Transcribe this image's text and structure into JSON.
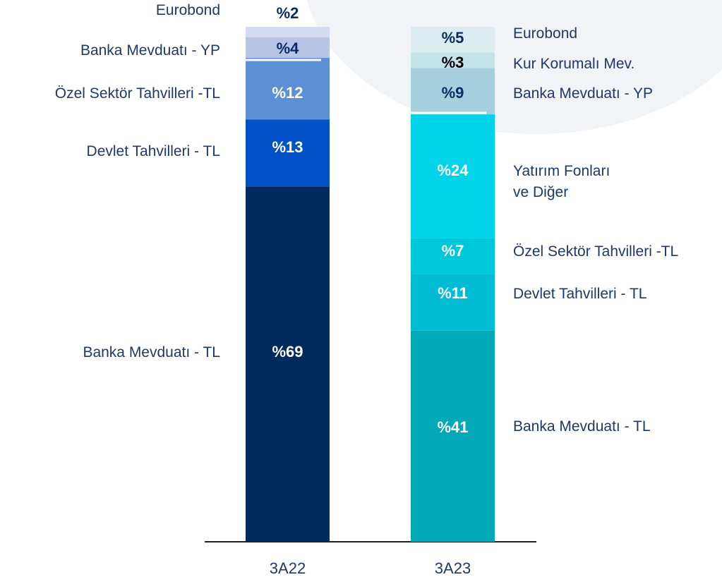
{
  "chart_data": {
    "type": "stacked-bar",
    "categories": [
      "3A22",
      "3A23"
    ],
    "stacks": [
      {
        "names": [
          "Banka Mevduatı - TL",
          "Devlet Tahvilleri - TL",
          "Özel Sektör Tahvilleri -TL",
          "Banka Mevduatı - YP",
          "Eurobond"
        ],
        "values": [
          69,
          13,
          12,
          4,
          2
        ],
        "value_labels": [
          "%69",
          "%13",
          "%12",
          "%4",
          "%2"
        ],
        "colors": [
          "#002a5c",
          "#0050c8",
          "#5b8fd6",
          "#b8c4e6",
          "#d4daf0"
        ],
        "label_colors": [
          "#ffffff",
          "#ffffff",
          "#ffffff",
          "#0b2b63",
          "#0b2b63"
        ]
      },
      {
        "names": [
          "Banka Mevduatı - TL",
          "Devlet Tahvilleri - TL",
          "Özel Sektör Tahvilleri -TL",
          "Yatırım Fonları\nve Diğer",
          "Banka Mevduatı - YP",
          "Kur Korumalı Mev.",
          "Eurobond"
        ],
        "values": [
          41,
          11,
          7,
          24,
          9,
          3,
          5
        ],
        "value_labels": [
          "%41",
          "%11",
          "%7",
          "%24",
          "%9",
          "%3",
          "%5"
        ],
        "colors": [
          "#00a9b8",
          "#00bcd4",
          "#00c8dc",
          "#00d4e8",
          "#a6d0de",
          "#c4e2ea",
          "#dcedf2"
        ],
        "label_colors": [
          "#ffffff",
          "#ffffff",
          "#ffffff",
          "#ffffff",
          "#0b2b63",
          "#000000",
          "#0b2b63"
        ]
      }
    ]
  }
}
